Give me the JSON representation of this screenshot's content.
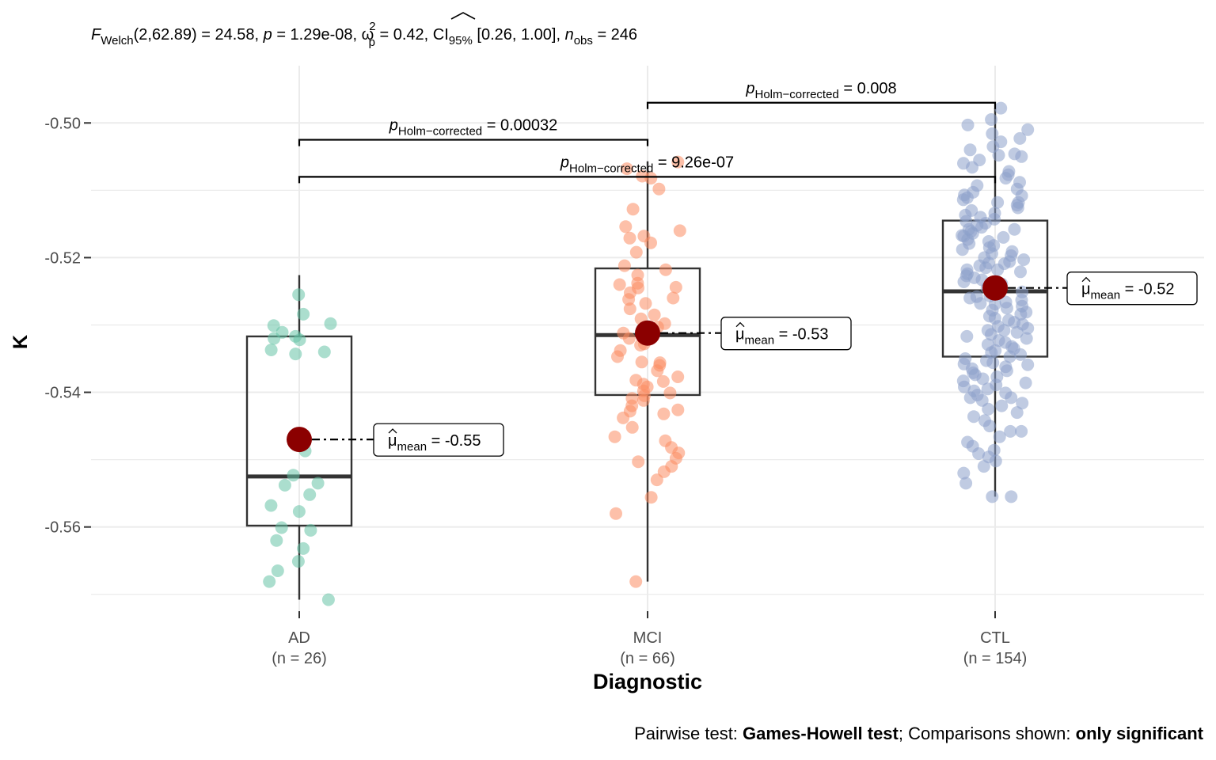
{
  "chart_data": {
    "type": "box",
    "title": {
      "stat_symbol": "F",
      "stat_sub": "Welch",
      "stat_args": "(2,62.89) = 24.58, ",
      "p_label": "p",
      "p_value": " = 1.29e-08, ",
      "effect_symbol": "ω",
      "effect_sup": "2",
      "effect_sub": "p",
      "effect_value": " = 0.42, CI",
      "ci_sub": "95%",
      "ci_value": " [0.26, 1.00], ",
      "n_symbol": "n",
      "n_sub": "obs",
      "n_value": " = 246"
    },
    "caption": {
      "pre": "Pairwise test: ",
      "test": "Games-Howell test",
      "mid": "; Comparisons shown: ",
      "shown": "only significant"
    },
    "xlabel": "Diagnostic",
    "ylabel": "K",
    "ylim": [
      -0.5725,
      -0.4915
    ],
    "yticks": [
      -0.56,
      -0.54,
      -0.52,
      -0.5
    ],
    "ytick_labels": [
      "-0.56",
      "-0.54",
      "-0.52",
      "-0.50"
    ],
    "categories": [
      {
        "name": "AD",
        "n_label": "(n = 26)",
        "color": "#66c2a5",
        "box": {
          "q1": -0.5598,
          "median": -0.5525,
          "q3": -0.5317,
          "whisker_low": -0.5708,
          "whisker_high": -0.5226
        },
        "mean": -0.547,
        "mean_label_value": " = -0.55",
        "points": [
          -0.5255,
          -0.5284,
          -0.5301,
          -0.5311,
          -0.5317,
          -0.5322,
          -0.5337,
          -0.534,
          -0.5487,
          -0.5523,
          -0.5538,
          -0.5535,
          -0.5552,
          -0.5568,
          -0.5577,
          -0.5601,
          -0.5605,
          -0.562,
          -0.5632,
          -0.5651,
          -0.5665,
          -0.5681,
          -0.5708,
          -0.5298,
          -0.532,
          -0.5343
        ]
      },
      {
        "name": "MCI",
        "n_label": "(n = 66)",
        "color": "#fc8d62",
        "box": {
          "q1": -0.5404,
          "median": -0.5315,
          "q3": -0.5216,
          "whisker_low": -0.5681,
          "whisker_high": -0.5057
        },
        "mean": -0.5312,
        "mean_label_value": " = -0.53",
        "points": [
          -0.5058,
          -0.5068,
          -0.5079,
          -0.5082,
          -0.5098,
          -0.5128,
          -0.5154,
          -0.516,
          -0.5168,
          -0.5171,
          -0.5178,
          -0.5192,
          -0.5212,
          -0.5218,
          -0.5226,
          -0.5238,
          -0.524,
          -0.5244,
          -0.5252,
          -0.526,
          -0.5268,
          -0.5276,
          -0.5285,
          -0.5291,
          -0.5298,
          -0.5303,
          -0.5312,
          -0.532,
          -0.5328,
          -0.5338,
          -0.5347,
          -0.5355,
          -0.536,
          -0.5368,
          -0.5377,
          -0.5382,
          -0.5388,
          -0.5392,
          -0.5398,
          -0.5401,
          -0.5405,
          -0.5412,
          -0.542,
          -0.5428,
          -0.5432,
          -0.5438,
          -0.5452,
          -0.5472,
          -0.5482,
          -0.549,
          -0.5498,
          -0.551,
          -0.5518,
          -0.553,
          -0.5556,
          -0.558,
          -0.5681,
          -0.5245,
          -0.5262,
          -0.533,
          -0.5356,
          -0.5384,
          -0.5409,
          -0.5426,
          -0.5466,
          -0.5503
        ]
      },
      {
        "name": "CTL",
        "n_label": "(n = 154)",
        "color": "#8da0cb",
        "box": {
          "q1": -0.5347,
          "median": -0.525,
          "q3": -0.5145,
          "whisker_low": -0.5555,
          "whisker_high": -0.4978
        },
        "mean": -0.5245,
        "mean_label_value": " = -0.52",
        "points": [
          -0.4978,
          -0.4995,
          -0.5003,
          -0.501,
          -0.5016,
          -0.5023,
          -0.5028,
          -0.5035,
          -0.504,
          -0.5046,
          -0.505,
          -0.5055,
          -0.506,
          -0.5066,
          -0.5072,
          -0.5077,
          -0.5082,
          -0.5088,
          -0.5093,
          -0.5098,
          -0.5103,
          -0.5107,
          -0.5111,
          -0.5114,
          -0.5118,
          -0.5122,
          -0.5126,
          -0.513,
          -0.5134,
          -0.5137,
          -0.514,
          -0.5143,
          -0.5146,
          -0.5149,
          -0.5152,
          -0.5155,
          -0.5158,
          -0.5161,
          -0.5164,
          -0.5167,
          -0.517,
          -0.5173,
          -0.5176,
          -0.5179,
          -0.5182,
          -0.5185,
          -0.5188,
          -0.5191,
          -0.5194,
          -0.5197,
          -0.52,
          -0.5203,
          -0.5206,
          -0.5209,
          -0.5212,
          -0.5215,
          -0.5218,
          -0.5221,
          -0.5224,
          -0.5227,
          -0.523,
          -0.5233,
          -0.5236,
          -0.5239,
          -0.5242,
          -0.5245,
          -0.5248,
          -0.5251,
          -0.5254,
          -0.5257,
          -0.526,
          -0.5263,
          -0.5266,
          -0.5269,
          -0.5272,
          -0.5275,
          -0.5278,
          -0.5281,
          -0.5284,
          -0.5287,
          -0.529,
          -0.5293,
          -0.5296,
          -0.5299,
          -0.5302,
          -0.5305,
          -0.5308,
          -0.5311,
          -0.5314,
          -0.5317,
          -0.532,
          -0.5323,
          -0.5326,
          -0.5329,
          -0.5332,
          -0.5335,
          -0.5338,
          -0.5341,
          -0.5344,
          -0.5347,
          -0.535,
          -0.5353,
          -0.5356,
          -0.5359,
          -0.5362,
          -0.5365,
          -0.5368,
          -0.5371,
          -0.5374,
          -0.5377,
          -0.538,
          -0.5383,
          -0.5386,
          -0.5389,
          -0.5392,
          -0.5395,
          -0.5398,
          -0.5401,
          -0.5404,
          -0.5408,
          -0.5412,
          -0.5416,
          -0.542,
          -0.5425,
          -0.543,
          -0.5436,
          -0.5442,
          -0.545,
          -0.5458,
          -0.5466,
          -0.5474,
          -0.548,
          -0.5486,
          -0.5491,
          -0.5496,
          -0.5502,
          -0.551,
          -0.552,
          -0.5535,
          -0.5555,
          -0.5555,
          -0.5048,
          -0.5108,
          -0.5158,
          -0.5208,
          -0.5258,
          -0.5308,
          -0.5358,
          -0.5408,
          -0.5458,
          -0.5118,
          -0.5168,
          -0.5218,
          -0.5268
        ]
      }
    ],
    "comparisons": [
      {
        "from": 1,
        "to": 2,
        "level": -0.497,
        "p_symbol": "p",
        "p_sub": "Holm−corrected",
        "p_value": " = 0.008"
      },
      {
        "from": 0,
        "to": 1,
        "level": -0.5025,
        "p_symbol": "p",
        "p_sub": "Holm−corrected",
        "p_value": " = 0.00032"
      },
      {
        "from": 0,
        "to": 2,
        "level": -0.508,
        "p_symbol": "p",
        "p_sub": "Holm−corrected",
        "p_value": " = 9.26e-07"
      }
    ],
    "mean_symbol": "μ",
    "mean_sub": "mean",
    "mean_color": "#8b0000",
    "grid": true,
    "legend": "none"
  }
}
